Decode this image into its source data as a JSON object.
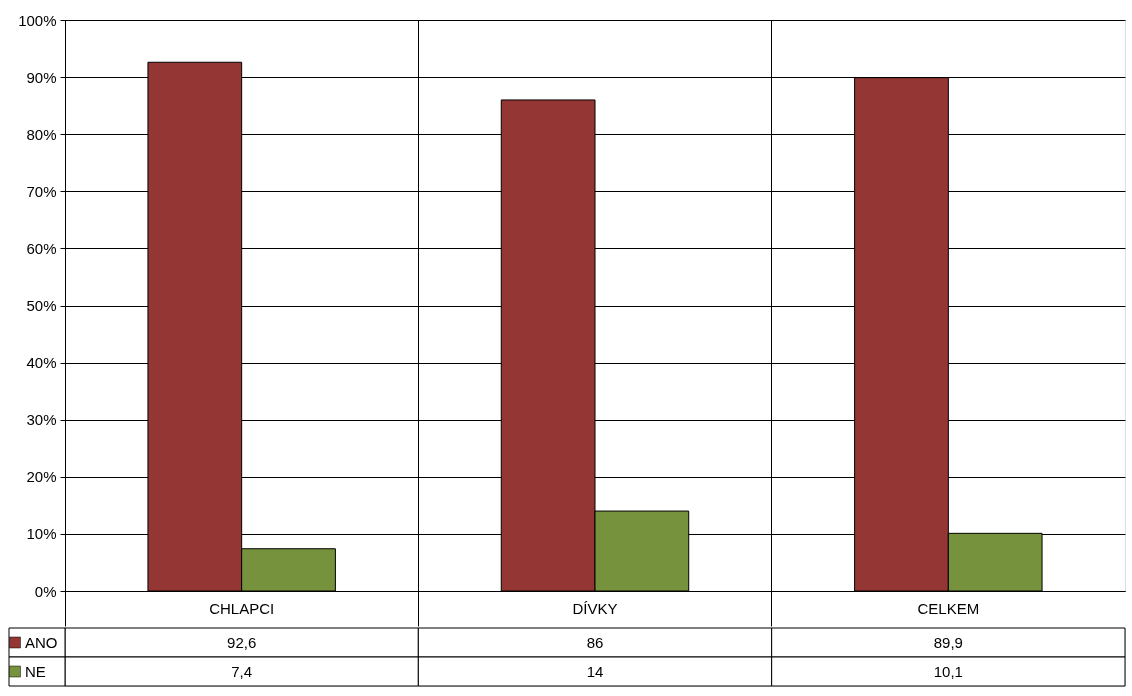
{
  "chart_data": {
    "type": "bar",
    "categories": [
      "CHLAPCI",
      "DÍVKY",
      "CELKEM"
    ],
    "series": [
      {
        "name": "ANO",
        "color": "#943634",
        "values": [
          92.6,
          86,
          89.9
        ],
        "value_labels": [
          "92,6",
          "86",
          "89,9"
        ]
      },
      {
        "name": "NE",
        "color": "#76923c",
        "values": [
          7.4,
          14,
          10.1
        ],
        "value_labels": [
          "7,4",
          "14",
          "10,1"
        ]
      }
    ],
    "ylim": [
      0,
      100
    ],
    "yticks": [
      {
        "value": 0,
        "label": "0%"
      },
      {
        "value": 10,
        "label": "10%"
      },
      {
        "value": 20,
        "label": "20%"
      },
      {
        "value": 30,
        "label": "30%"
      },
      {
        "value": 40,
        "label": "40%"
      },
      {
        "value": 50,
        "label": "50%"
      },
      {
        "value": 60,
        "label": "60%"
      },
      {
        "value": 70,
        "label": "70%"
      },
      {
        "value": 80,
        "label": "80%"
      },
      {
        "value": 90,
        "label": "90%"
      },
      {
        "value": 100,
        "label": "100%"
      }
    ],
    "grid": true,
    "legend": "bottom left"
  }
}
